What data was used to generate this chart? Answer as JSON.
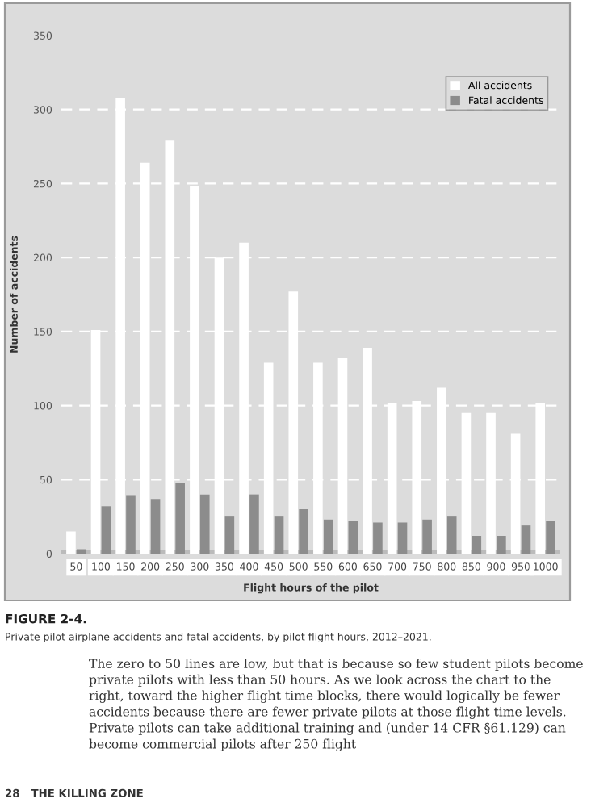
{
  "chart_data": {
    "type": "bar",
    "title": "FIGURE 2-4.",
    "subtitle": "Private pilot airplane accidents and fatal accidents, by pilot flight hours, 2012–2021.",
    "xlabel": "Flight hours of the pilot",
    "ylabel": "Number of accidents",
    "categories": [
      "50",
      "100",
      "150",
      "200",
      "250",
      "300",
      "350",
      "400",
      "450",
      "500",
      "550",
      "600",
      "650",
      "700",
      "750",
      "800",
      "850",
      "900",
      "950",
      "1000"
    ],
    "series": [
      {
        "name": "All accidents",
        "color": "#ffffff",
        "values": [
          15,
          151,
          308,
          264,
          279,
          248,
          200,
          210,
          129,
          177,
          129,
          132,
          139,
          102,
          103,
          112,
          95,
          95,
          81,
          102
        ]
      },
      {
        "name": "Fatal accidents",
        "color": "#8c8c8c",
        "values": [
          3,
          32,
          39,
          37,
          48,
          40,
          25,
          40,
          25,
          30,
          23,
          22,
          21,
          21,
          23,
          25,
          12,
          12,
          19,
          22
        ]
      }
    ],
    "ylim": [
      0,
      350
    ],
    "yticks": [
      0,
      50,
      100,
      150,
      200,
      250,
      300,
      350
    ],
    "grid": "y",
    "legend": "top right",
    "annotations": [
      "The zero to 50 lines are low, but that is because so few student pilots become private pilots with less than 50 hours. As we look across the chart to the right, toward the higher flight time blocks, there would logically be fewer accidents because there are fewer private pilots at those flight time levels. Private pilots can take additional training and (under 14 CFR §61.129) can become commercial pilots after 250 flight",
      "28   THE KILLING ZONE"
    ]
  }
}
